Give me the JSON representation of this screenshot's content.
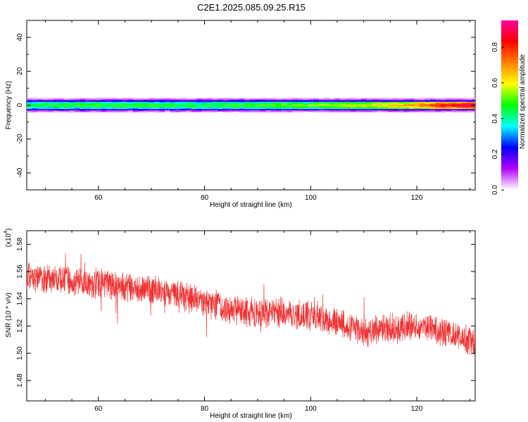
{
  "page_title": "C2E1.2025.085.09.25.R15",
  "chart_data": [
    {
      "type": "heatmap",
      "title": "",
      "xlabel": "Height of straight line (km)",
      "ylabel": "Frequency (Hz)",
      "xlim": [
        46.5,
        131
      ],
      "ylim": [
        -50,
        50
      ],
      "xticks": [
        60,
        80,
        100,
        120
      ],
      "yticks": [
        -40,
        -20,
        0,
        20,
        40
      ],
      "xtick_labels": [
        "60",
        "80",
        "100",
        "120"
      ],
      "ytick_labels": [
        "-40",
        "-20",
        "0",
        "20",
        "40"
      ],
      "band": {
        "frequency_center_hz": 0,
        "half_width_hz": 3,
        "x": [
          46.5,
          60,
          80,
          100,
          110,
          118,
          124,
          131
        ],
        "center_amplitude": [
          0.45,
          0.5,
          0.48,
          0.55,
          0.6,
          0.7,
          0.85,
          0.95
        ]
      },
      "colorbar": {
        "label": "Normalized spectral amplitude",
        "range": [
          0,
          0.95
        ],
        "ticks": [
          0.0,
          0.2,
          0.4,
          0.6,
          0.8
        ],
        "tick_labels": [
          "0.0",
          "0.2",
          "0.4",
          "0.6",
          "0.8"
        ],
        "colors": [
          "#ffffff",
          "#b400ff",
          "#0000ff",
          "#00ffff",
          "#00ff00",
          "#ffff00",
          "#ff8000",
          "#ff0000",
          "#ff00a0"
        ]
      }
    },
    {
      "type": "line",
      "title": "",
      "xlabel": "Height of straight line (km)",
      "ylabel": "SNR (10 * v/v)",
      "y_multiplier_label": "(x10",
      "y_multiplier_exponent": "4",
      "y_multiplier_suffix": ")",
      "xlim": [
        46.5,
        131
      ],
      "ylim": [
        1.465,
        1.59
      ],
      "xticks": [
        60,
        80,
        100,
        120
      ],
      "yticks": [
        1.48,
        1.5,
        1.52,
        1.54,
        1.56,
        1.58
      ],
      "xtick_labels": [
        "60",
        "80",
        "100",
        "120"
      ],
      "ytick_labels": [
        "1.48",
        "1.50",
        "1.52",
        "1.54",
        "1.56",
        "1.58"
      ],
      "color": "#ee3333",
      "trend": {
        "x": [
          46.5,
          55,
          65,
          75,
          80,
          85,
          90,
          95,
          100,
          105,
          110,
          115,
          120,
          125,
          131
        ],
        "y": [
          1.556,
          1.553,
          1.549,
          1.543,
          1.538,
          1.532,
          1.529,
          1.53,
          1.528,
          1.523,
          1.515,
          1.518,
          1.52,
          1.516,
          1.508
        ]
      },
      "noise_amplitude": 0.012,
      "num_points": 2200
    }
  ]
}
